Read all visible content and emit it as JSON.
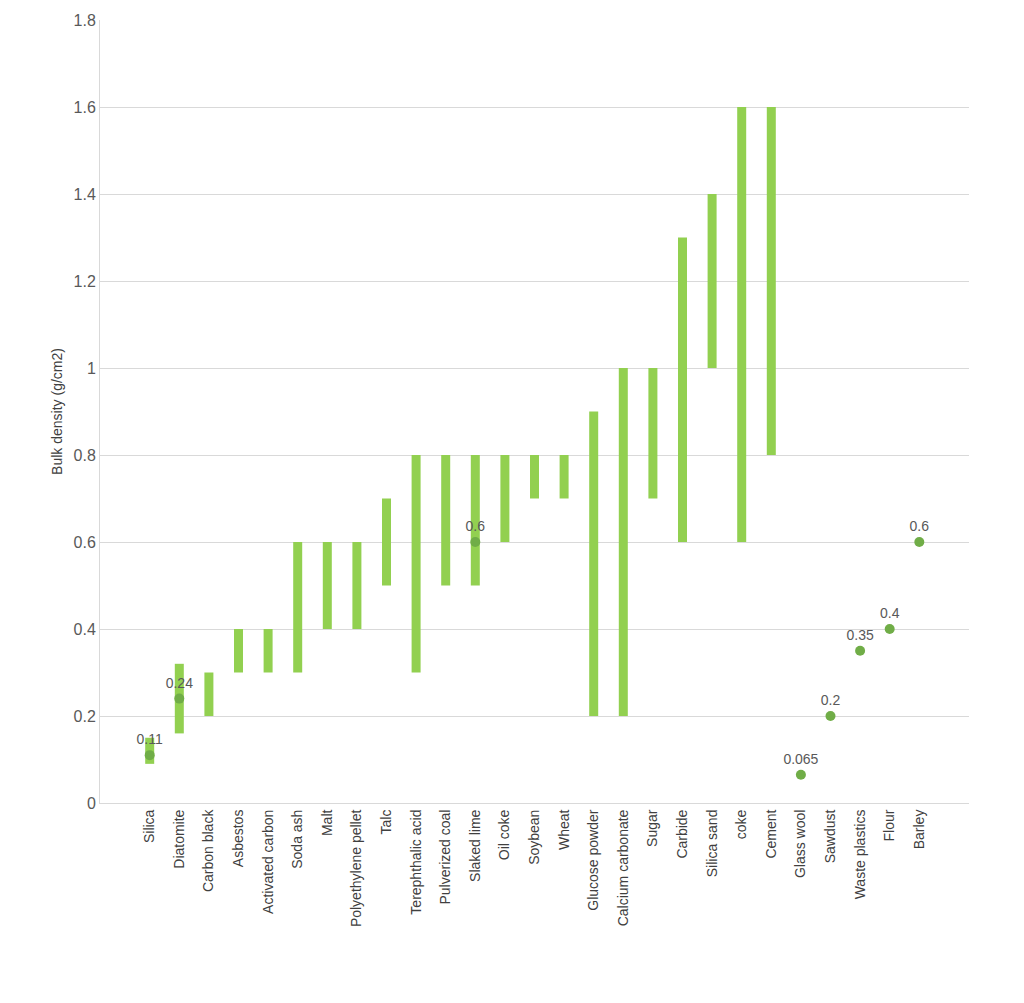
{
  "chart_data": {
    "type": "range",
    "y_label": "Bulk density (g/cm2)",
    "categories": [
      "Glass wool",
      "Silica",
      "Sawdust",
      "Diatomite",
      "Carbon black",
      "Waste plastics",
      "Flour",
      "Asbestos",
      "Activated carbon",
      "Soda ash",
      "Malt",
      "Polyethylene pellet",
      "Barley",
      "Talc",
      "Terephthalic acid",
      "Pulverized coal",
      "Slaked lime",
      "Oil coke",
      "Soybean",
      "Wheat",
      "Glucose powder",
      "Calcium carbonate",
      "Sugar",
      "Carbide",
      "Silica sand",
      "coke",
      "Cement"
    ],
    "series": [
      {
        "type": "range",
        "color": "#92d050",
        "low": [
          null,
          0.09,
          null,
          0.16,
          0.2,
          null,
          null,
          0.3,
          0.3,
          0.3,
          0.4,
          0.4,
          null,
          0.5,
          0.3,
          0.5,
          0.5,
          0.6,
          0.7,
          0.7,
          0.2,
          0.2,
          0.7,
          0.6,
          1.0,
          0.6,
          0.8
        ],
        "high": [
          null,
          0.15,
          null,
          0.32,
          0.3,
          null,
          null,
          0.4,
          0.4,
          0.6,
          0.6,
          0.6,
          null,
          0.7,
          0.8,
          0.8,
          0.8,
          0.8,
          0.8,
          0.8,
          0.9,
          1.0,
          1.0,
          1.3,
          1.4,
          1.6,
          1.6
        ]
      },
      {
        "type": "scatter",
        "color": "#70ad47",
        "marker": "circle",
        "data_labels": true,
        "values": [
          0.065,
          0.11,
          0.2,
          0.24,
          null,
          0.35,
          0.4,
          null,
          null,
          null,
          null,
          null,
          0.6,
          null,
          null,
          null,
          0.6,
          null,
          null,
          null,
          null,
          null,
          null,
          null,
          null,
          null,
          null
        ]
      }
    ],
    "ylim": [
      0,
      1.8
    ],
    "yticks": [
      0,
      0.2,
      0.4,
      0.6,
      0.8,
      1,
      1.2,
      1.4,
      1.6,
      1.8
    ],
    "grid": true
  }
}
